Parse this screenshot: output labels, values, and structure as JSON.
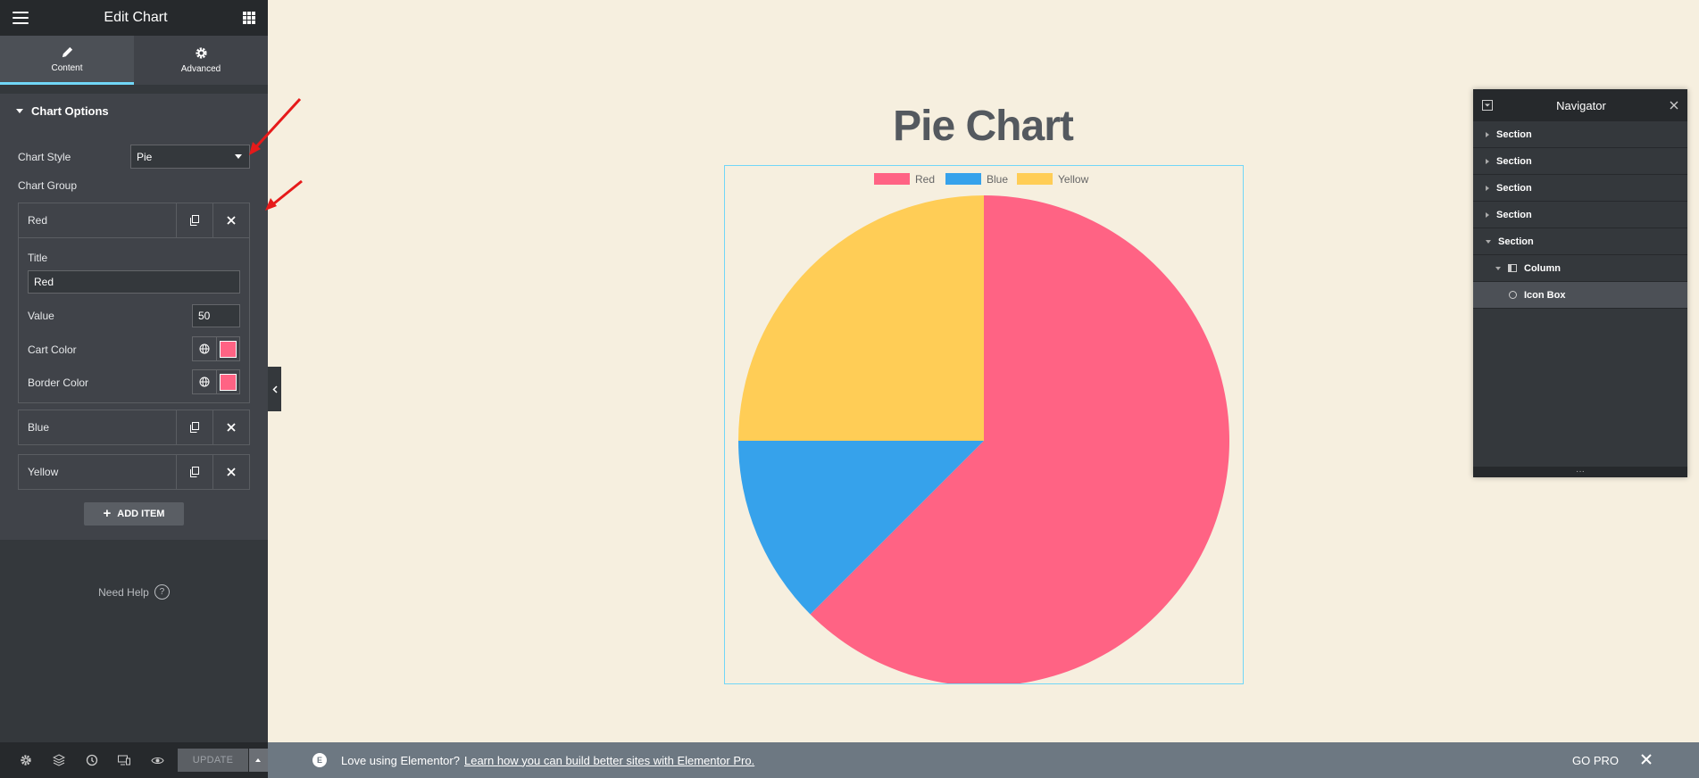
{
  "panel": {
    "title": "Edit Chart",
    "tabs": [
      {
        "label": "Content"
      },
      {
        "label": "Advanced"
      }
    ],
    "section_title": "Chart Options",
    "chart_style": {
      "label": "Chart Style",
      "value": "Pie"
    },
    "chart_group_label": "Chart Group",
    "items": [
      {
        "label": "Red",
        "expanded": true,
        "title_label": "Title",
        "title_value": "Red",
        "value_label": "Value",
        "value": "50",
        "cart_color_label": "Cart Color",
        "border_color_label": "Border Color",
        "color": "#ff6384"
      },
      {
        "label": "Blue"
      },
      {
        "label": "Yellow"
      }
    ],
    "add_item_label": "ADD ITEM",
    "need_help": "Need Help",
    "update_label": "UPDATE"
  },
  "canvas": {
    "heading": "Pie Chart"
  },
  "chart_data": {
    "type": "pie",
    "categories": [
      "Red",
      "Blue",
      "Yellow"
    ],
    "values": [
      50,
      10,
      20
    ],
    "colors": [
      "#ff6384",
      "#36a2eb",
      "#ffcd56"
    ],
    "legend": "top"
  },
  "navigator": {
    "title": "Navigator",
    "items": [
      {
        "label": "Section",
        "level": 0,
        "expanded": false
      },
      {
        "label": "Section",
        "level": 0,
        "expanded": false
      },
      {
        "label": "Section",
        "level": 0,
        "expanded": false
      },
      {
        "label": "Section",
        "level": 0,
        "expanded": false
      },
      {
        "label": "Section",
        "level": 0,
        "expanded": true
      },
      {
        "label": "Column",
        "level": 1,
        "expanded": true
      },
      {
        "label": "Icon Box",
        "level": 2,
        "selected": true
      }
    ]
  },
  "promo": {
    "text": "Love using Elementor?",
    "link": "Learn how you can build better sites with Elementor Pro.",
    "go_pro": "GO PRO"
  }
}
